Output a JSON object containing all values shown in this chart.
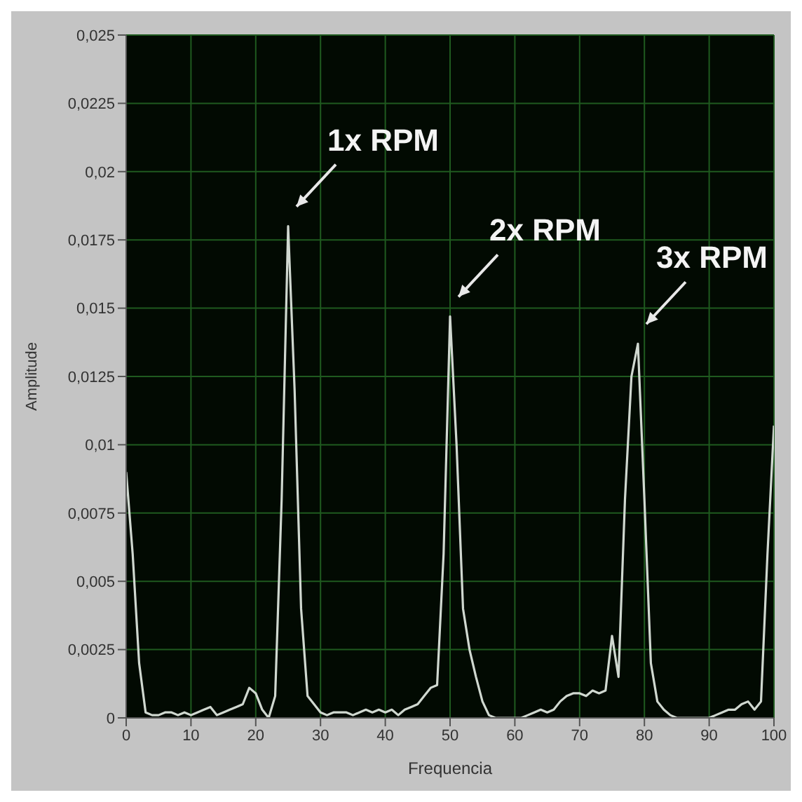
{
  "chart_data": {
    "type": "line",
    "xlabel": "Frequencia",
    "ylabel": "Amplitude",
    "x": [
      0,
      1,
      2,
      3,
      4,
      5,
      6,
      7,
      8,
      9,
      10,
      11,
      12,
      13,
      14,
      15,
      16,
      17,
      18,
      19,
      20,
      21,
      22,
      23,
      24,
      25,
      26,
      27,
      28,
      29,
      30,
      31,
      32,
      33,
      34,
      35,
      36,
      37,
      38,
      39,
      40,
      41,
      42,
      43,
      44,
      45,
      46,
      47,
      48,
      49,
      50,
      51,
      52,
      53,
      54,
      55,
      56,
      57,
      58,
      59,
      60,
      61,
      62,
      63,
      64,
      65,
      66,
      67,
      68,
      69,
      70,
      71,
      72,
      73,
      74,
      75,
      76,
      77,
      78,
      79,
      80,
      81,
      82,
      83,
      84,
      85,
      86,
      87,
      88,
      89,
      90,
      91,
      92,
      93,
      94,
      95,
      96,
      97,
      98,
      99,
      100
    ],
    "series": [
      {
        "color": "#d0d8d0",
        "values": [
          0.009,
          0.006,
          0.002,
          0.0002,
          0.0001,
          0.0001,
          0.0002,
          0.0002,
          0.0001,
          0.0002,
          0.0001,
          0.0002,
          0.0003,
          0.0004,
          0.0001,
          0.0002,
          0.0003,
          0.0004,
          0.0005,
          0.0011,
          0.0009,
          0.0003,
          0,
          0.0008,
          0.008,
          0.018,
          0.012,
          0.004,
          0.0008,
          0.0005,
          0.0002,
          0.0001,
          0.0002,
          0.0002,
          0.0002,
          0.0001,
          0.0002,
          0.0003,
          0.0002,
          0.0003,
          0.0002,
          0.0003,
          0.0001,
          0.0003,
          0.0004,
          0.0005,
          0.0008,
          0.0011,
          0.0012,
          0.006,
          0.0147,
          0.01,
          0.004,
          0.0025,
          0.0015,
          0.0006,
          0.0001,
          0,
          0,
          0,
          0,
          0,
          0.0001,
          0.0002,
          0.0003,
          0.0002,
          0.0003,
          0.0006,
          0.0008,
          0.0009,
          0.0009,
          0.0008,
          0.001,
          0.0009,
          0.001,
          0.003,
          0.0015,
          0.008,
          0.0125,
          0.0137,
          0.008,
          0.002,
          0.0006,
          0.0003,
          0.0001,
          0,
          0,
          0,
          0,
          0,
          0,
          0.0001,
          0.0002,
          0.0003,
          0.0003,
          0.0005,
          0.0006,
          0.0003,
          0.0006,
          0.006,
          0.0107
        ]
      }
    ],
    "xlim": [
      0,
      100
    ],
    "xticks": [
      0,
      10,
      20,
      30,
      40,
      50,
      60,
      70,
      80,
      90,
      100
    ],
    "ylim": [
      0,
      0.025
    ],
    "yticks": [
      {
        "value": 0,
        "label": "0"
      },
      {
        "value": 0.0025,
        "label": "0,0025"
      },
      {
        "value": 0.005,
        "label": "0,005"
      },
      {
        "value": 0.0075,
        "label": "0,0075"
      },
      {
        "value": 0.01,
        "label": "0,01"
      },
      {
        "value": 0.0125,
        "label": "0,0125"
      },
      {
        "value": 0.015,
        "label": "0,015"
      },
      {
        "value": 0.0175,
        "label": "0,0175"
      },
      {
        "value": 0.02,
        "label": "0,02"
      },
      {
        "value": 0.0225,
        "label": "0,0225"
      },
      {
        "value": 0.025,
        "label": "0,025"
      }
    ],
    "grid": true,
    "marker": "none",
    "line_style": "solid",
    "annotations": [
      {
        "text": "1x RPM",
        "x": 25,
        "y": 0.018
      },
      {
        "text": "2x RPM",
        "x": 50,
        "y": 0.0147
      },
      {
        "text": "3x RPM",
        "x": 79,
        "y": 0.0137
      }
    ]
  }
}
